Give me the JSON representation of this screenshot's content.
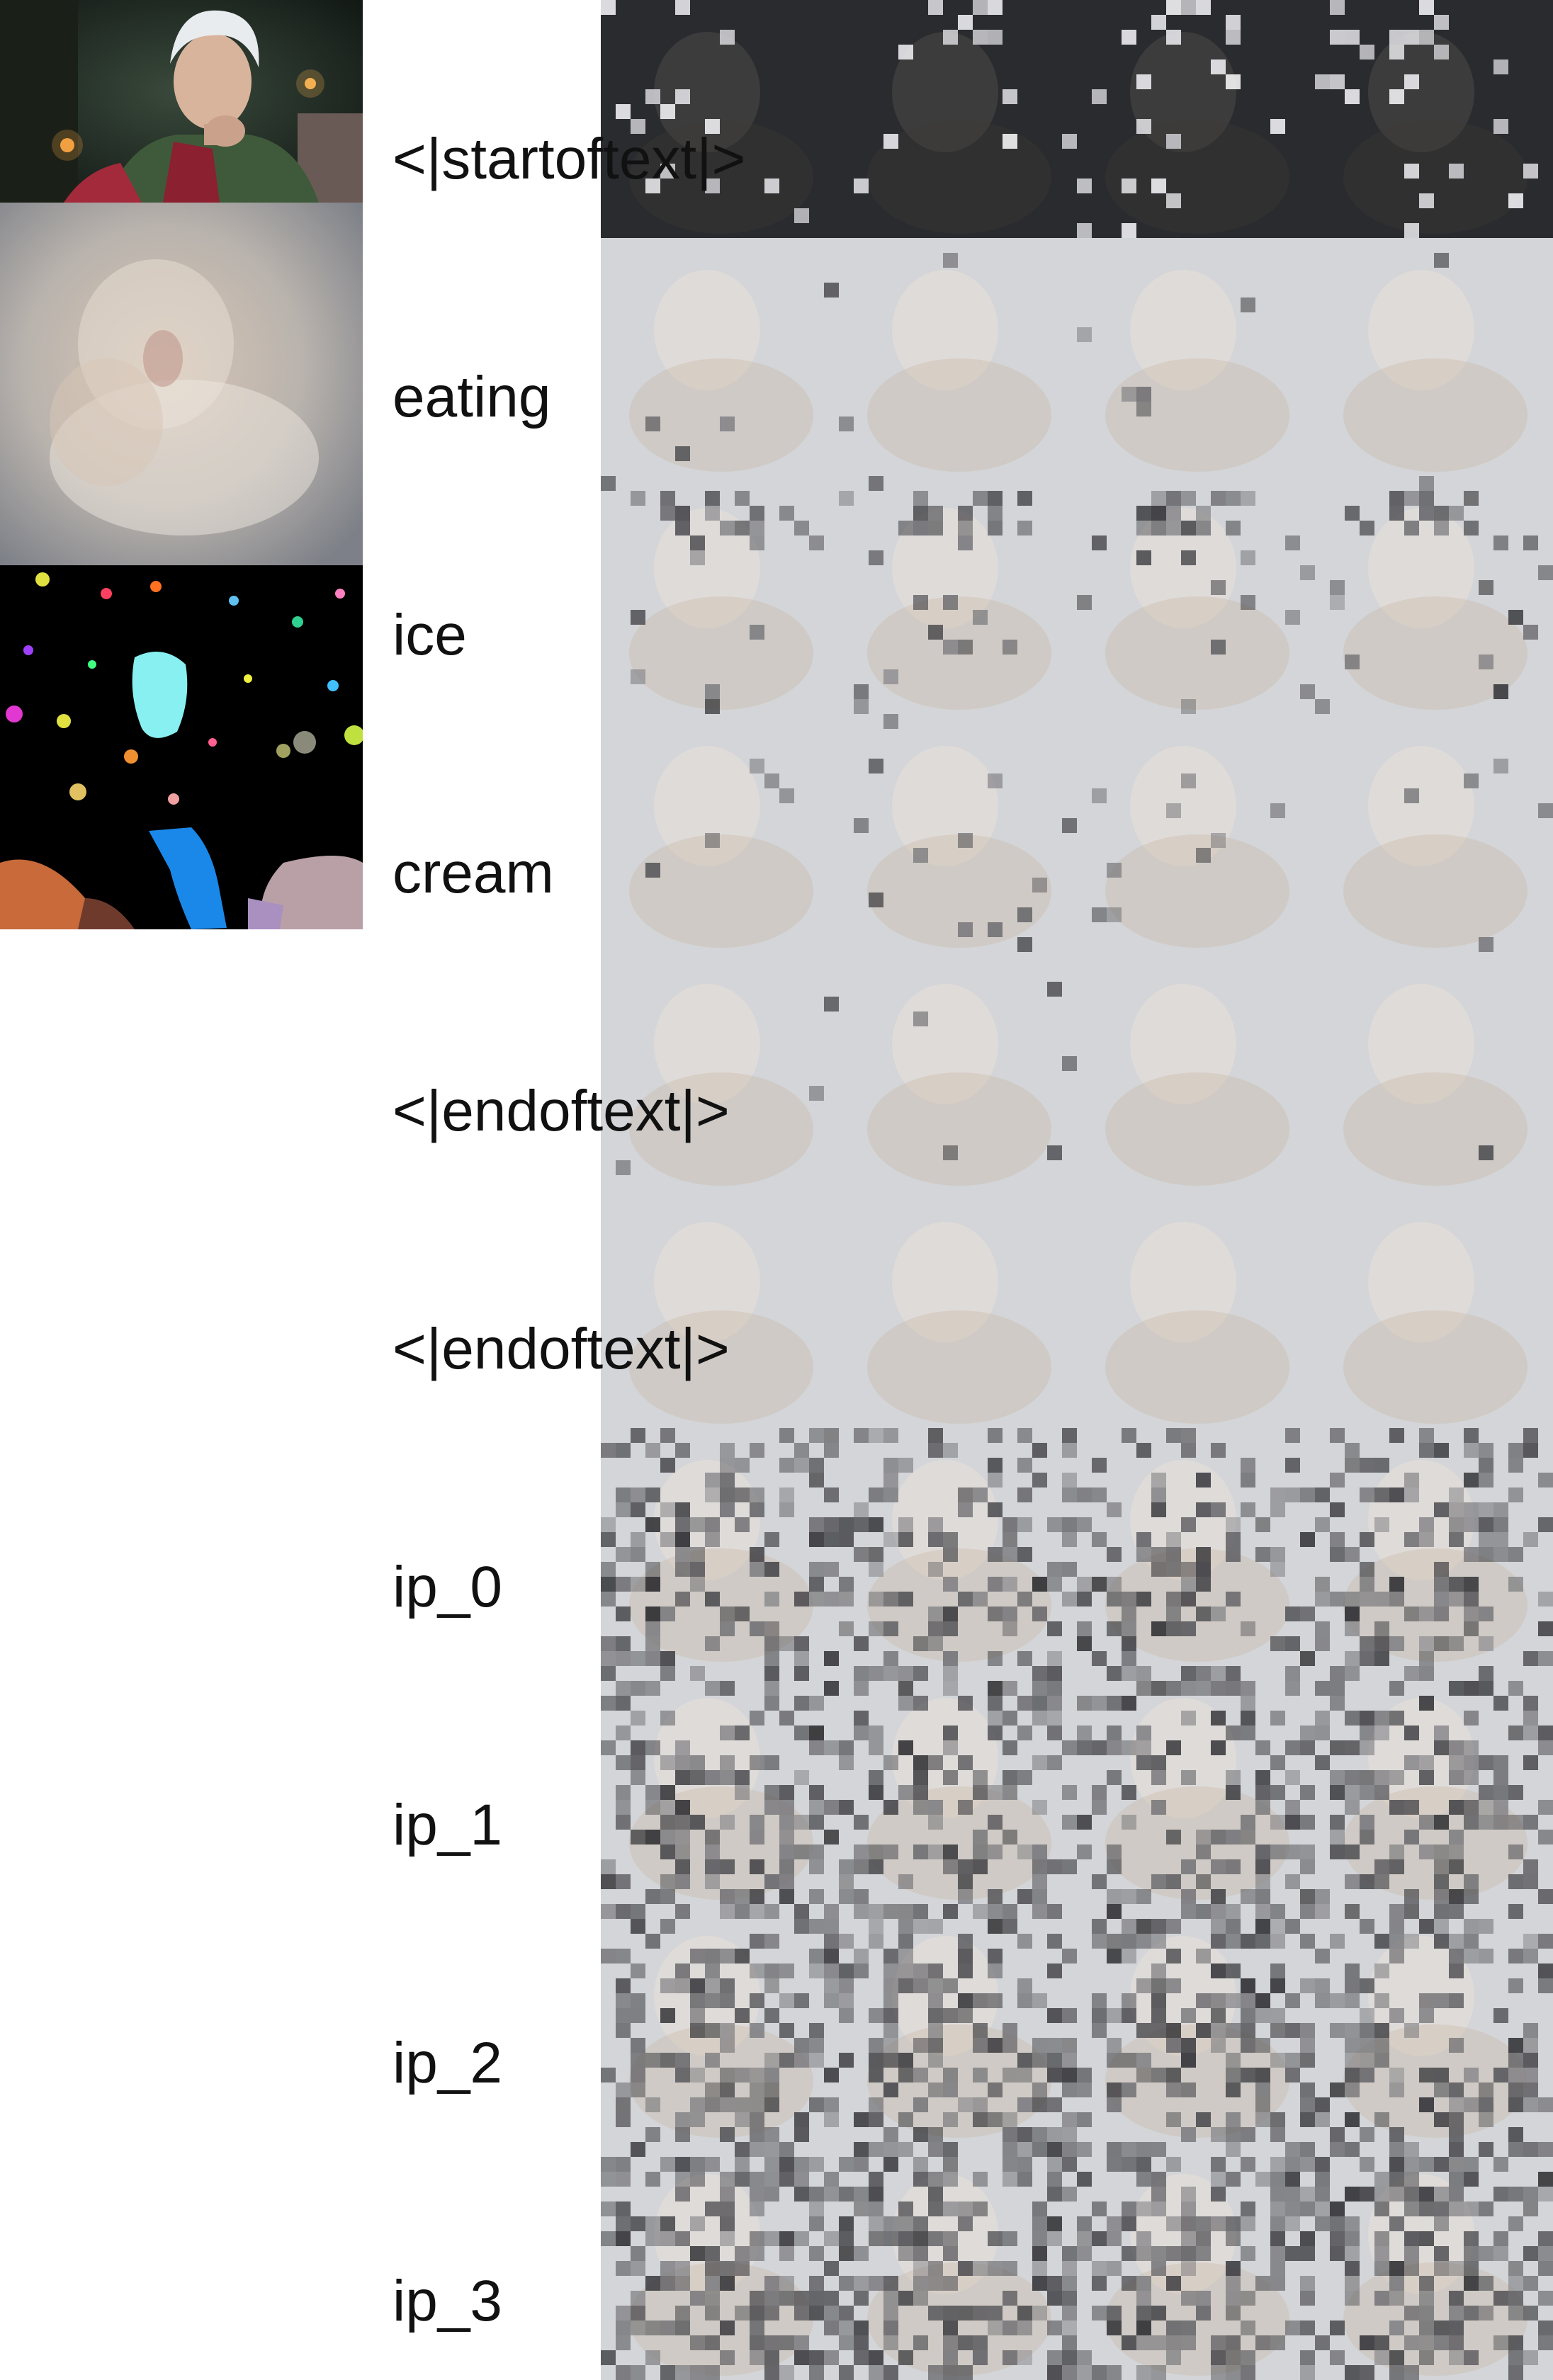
{
  "left_column": {
    "source": {
      "icon": "character-portrait"
    },
    "reconstruction": {
      "icon": "blurred-reconstruction"
    },
    "segmentation": {
      "icon": "segmentation-mask"
    }
  },
  "tokens": [
    {
      "label": "<|startoftext|>",
      "tone": "dark"
    },
    {
      "label": "eating",
      "tone": "light"
    },
    {
      "label": "ice",
      "tone": "light"
    },
    {
      "label": "cream",
      "tone": "light"
    },
    {
      "label": "<|endoftext|>",
      "tone": "light"
    },
    {
      "label": "<|endoftext|>",
      "tone": "light"
    },
    {
      "label": "ip_0",
      "tone": "light"
    },
    {
      "label": "ip_1",
      "tone": "light"
    },
    {
      "label": "ip_2",
      "tone": "light"
    },
    {
      "label": "ip_3",
      "tone": "light"
    }
  ],
  "colors": {
    "background": "#ffffff",
    "label_text": "#111111",
    "dark_cell": "#2a2b2f",
    "light_cell": "#d3d5d8",
    "warm_tint": "#c9b6a4"
  }
}
